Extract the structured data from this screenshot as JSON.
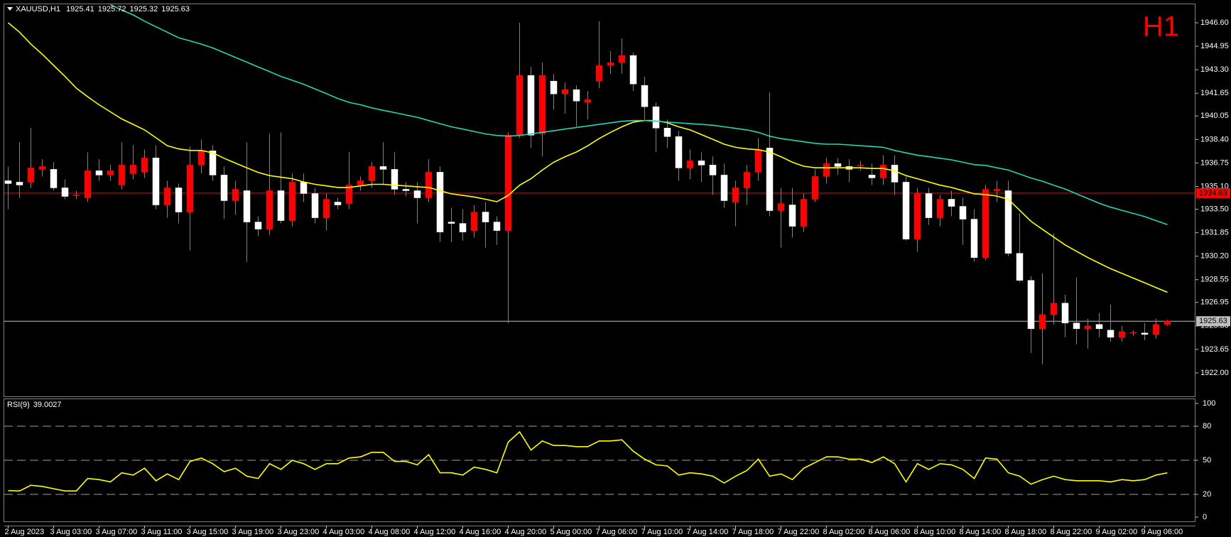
{
  "chart_data": {
    "type": "candlestick",
    "symbol": "XAUUSD,H1",
    "timeframe_label": "H1",
    "categories": [
      "2 Aug 2023",
      null,
      null,
      null,
      "3 Aug 03:00",
      null,
      null,
      null,
      "3 Aug 07:00",
      null,
      null,
      null,
      "3 Aug 11:00",
      null,
      null,
      null,
      "3 Aug 15:00",
      null,
      null,
      null,
      "3 Aug 19:00",
      null,
      null,
      null,
      "3 Aug 23:00",
      null,
      null,
      null,
      "4 Aug 03:00",
      null,
      null,
      null,
      "4 Aug 08:00",
      null,
      null,
      null,
      "4 Aug 12:00",
      null,
      null,
      null,
      "4 Aug 16:00",
      null,
      null,
      null,
      "4 Aug 20:00",
      null,
      null,
      null,
      "5 Aug 00:00",
      null,
      null,
      null,
      "7 Aug 06:00",
      null,
      null,
      null,
      "7 Aug 10:00",
      null,
      null,
      null,
      "7 Aug 14:00",
      null,
      null,
      null,
      "7 Aug 18:00",
      null,
      null,
      null,
      "7 Aug 22:00",
      null,
      null,
      null,
      "8 Aug 02:00",
      null,
      null,
      null,
      "8 Aug 06:00",
      null,
      null,
      null,
      "8 Aug 10:00",
      null,
      null,
      null,
      "8 Aug 14:00",
      null,
      null,
      null,
      "8 Aug 18:00",
      null,
      null,
      null,
      "8 Aug 22:00",
      null,
      null,
      null,
      "9 Aug 02:00",
      null,
      null,
      null,
      "9 Aug 06:00",
      null,
      null
    ],
    "open": [
      1935.5,
      1935.4,
      1935.4,
      1936.3,
      1936.3,
      1935.0,
      1934.45,
      1934.3,
      1936.2,
      1935.9,
      1935.2,
      1936.0,
      1936.1,
      1937.1,
      1933.8,
      1935.0,
      1933.3,
      1936.6,
      1937.6,
      1935.9,
      1934.1,
      1934.8,
      1932.6,
      1932.1,
      1934.8,
      1932.7,
      1935.4,
      1934.6,
      1932.9,
      1934.0,
      1933.9,
      1935.2,
      1935.5,
      1936.5,
      1936.3,
      1934.9,
      1934.8,
      1934.3,
      1936.1,
      1932.6,
      1932.5,
      1932.0,
      1933.3,
      1932.6,
      1932.0,
      1938.7,
      1942.9,
      1938.8,
      1942.5,
      1941.6,
      1941.9,
      1941.0,
      1942.5,
      1943.6,
      1943.8,
      1944.3,
      1942.2,
      1940.7,
      1939.2,
      1938.6,
      1936.4,
      1936.9,
      1936.6,
      1935.9,
      1934.0,
      1935.0,
      1936.1,
      1937.8,
      1933.4,
      1933.8,
      1932.3,
      1934.2,
      1935.8,
      1936.7,
      1936.5,
      1936.55,
      1935.9,
      1935.7,
      1936.6,
      1935.4,
      1931.4,
      1934.6,
      1932.9,
      1934.2,
      1933.7,
      1932.8,
      1930.1,
      1934.8,
      1934.8,
      1930.4,
      1928.5,
      1925.1,
      1926.1,
      1926.9,
      1925.5,
      1925.1,
      1925.4,
      1925.0,
      1924.5,
      1924.8,
      1924.8,
      1924.7,
      1925.41
    ],
    "high": [
      1936.5,
      1938.2,
      1939.2,
      1937.0,
      1936.8,
      1935.6,
      1934.8,
      1937.5,
      1937.0,
      1936.6,
      1938.2,
      1938.0,
      1937.7,
      1938.0,
      1935.5,
      1935.3,
      1937.9,
      1938.4,
      1938.0,
      1936.5,
      1935.5,
      1938.2,
      1933.0,
      1938.8,
      1938.9,
      1936.0,
      1936.0,
      1935.0,
      1934.6,
      1934.3,
      1937.5,
      1935.8,
      1936.8,
      1938.2,
      1937.5,
      1935.4,
      1935.4,
      1937.0,
      1936.5,
      1933.6,
      1933.5,
      1933.8,
      1934.0,
      1933.0,
      1938.9,
      1946.6,
      1943.5,
      1943.8,
      1943.0,
      1942.4,
      1942.2,
      1941.8,
      1946.7,
      1944.6,
      1945.5,
      1944.5,
      1942.8,
      1941.0,
      1939.8,
      1939.0,
      1937.7,
      1937.5,
      1937.2,
      1936.7,
      1935.5,
      1936.6,
      1938.5,
      1941.7,
      1935.0,
      1935.0,
      1934.6,
      1936.3,
      1937.1,
      1937.1,
      1937.0,
      1936.9,
      1936.7,
      1937.3,
      1937.3,
      1935.8,
      1935.0,
      1935.0,
      1934.5,
      1934.8,
      1934.3,
      1933.5,
      1935.2,
      1935.5,
      1935.5,
      1933.2,
      1928.8,
      1929.0,
      1931.8,
      1927.5,
      1928.7,
      1925.8,
      1926.2,
      1926.8,
      1925.3,
      1925.0,
      1925.5,
      1925.8,
      1925.72
    ],
    "low": [
      1933.5,
      1934.3,
      1935.0,
      1935.8,
      1934.8,
      1934.2,
      1934.2,
      1934.0,
      1935.5,
      1935.5,
      1934.9,
      1935.6,
      1935.7,
      1933.5,
      1932.9,
      1932.5,
      1930.6,
      1936.0,
      1935.5,
      1932.8,
      1933.1,
      1929.8,
      1931.6,
      1931.7,
      1932.5,
      1932.3,
      1934.0,
      1932.5,
      1932.0,
      1933.5,
      1933.5,
      1934.8,
      1935.0,
      1935.2,
      1934.5,
      1934.4,
      1932.5,
      1934.0,
      1931.2,
      1931.2,
      1931.3,
      1931.5,
      1930.8,
      1931.0,
      1925.5,
      1938.5,
      1937.8,
      1937.2,
      1940.5,
      1940.2,
      1939.3,
      1939.8,
      1942.0,
      1943.0,
      1943.0,
      1941.8,
      1939.8,
      1937.5,
      1937.8,
      1935.5,
      1935.6,
      1935.4,
      1934.5,
      1933.6,
      1932.3,
      1933.8,
      1935.5,
      1933.0,
      1930.8,
      1931.5,
      1931.9,
      1934.0,
      1935.3,
      1935.9,
      1935.4,
      1936.2,
      1935.2,
      1935.2,
      1934.5,
      1931.3,
      1930.5,
      1932.4,
      1932.3,
      1933.0,
      1931.0,
      1929.8,
      1929.9,
      1934.0,
      1930.2,
      1928.4,
      1923.4,
      1922.6,
      1925.4,
      1924.5,
      1924.0,
      1923.7,
      1924.5,
      1924.2,
      1924.2,
      1924.6,
      1924.3,
      1924.4,
      1925.32
    ],
    "close": [
      1935.3,
      1935.2,
      1936.4,
      1936.5,
      1935.0,
      1934.4,
      1934.5,
      1936.2,
      1935.9,
      1936.2,
      1936.6,
      1936.6,
      1937.1,
      1933.8,
      1935.0,
      1933.3,
      1936.6,
      1937.6,
      1935.9,
      1934.1,
      1934.9,
      1932.6,
      1932.1,
      1934.8,
      1932.7,
      1935.4,
      1934.6,
      1932.9,
      1934.2,
      1933.8,
      1935.2,
      1935.5,
      1936.5,
      1936.3,
      1934.9,
      1934.8,
      1934.3,
      1936.1,
      1931.9,
      1932.5,
      1931.9,
      1933.3,
      1932.6,
      1932.0,
      1938.7,
      1942.9,
      1938.7,
      1942.9,
      1941.6,
      1941.9,
      1941.1,
      1941.2,
      1943.6,
      1943.8,
      1944.3,
      1942.3,
      1940.7,
      1939.2,
      1938.6,
      1936.4,
      1936.9,
      1936.6,
      1935.9,
      1934.1,
      1935.0,
      1936.1,
      1937.7,
      1933.4,
      1933.9,
      1932.3,
      1934.2,
      1935.8,
      1936.7,
      1936.5,
      1936.3,
      1936.6,
      1935.7,
      1936.6,
      1935.4,
      1931.4,
      1934.6,
      1932.9,
      1934.2,
      1933.7,
      1932.8,
      1930.1,
      1934.9,
      1934.9,
      1930.4,
      1928.5,
      1925.1,
      1926.1,
      1926.9,
      1925.5,
      1925.1,
      1925.3,
      1925.1,
      1924.5,
      1924.9,
      1924.85,
      1924.7,
      1925.4,
      1925.63
    ],
    "up_color": "#ff0000",
    "down_color": "#ffffff",
    "wick_color": "#00e000",
    "ylim": [
      1920.35,
      1947.9
    ],
    "yticks": [
      {
        "value": 1946.6,
        "label": "1946.60"
      },
      1944.95,
      {
        "value": 1943.3,
        "label": "1943.30"
      },
      1941.65,
      1940.05,
      {
        "value": 1938.4,
        "label": "1938.40"
      },
      1936.75,
      {
        "value": 1935.1,
        "label": "1935.10"
      },
      {
        "value": 1933.5,
        "label": "1933.50"
      },
      1931.85,
      {
        "value": 1930.2,
        "label": "1930.20"
      },
      1928.55,
      1926.95,
      {
        "value": 1925.3,
        "label": "1925.30"
      },
      1923.65,
      {
        "value": 1922,
        "label": "1922.00"
      }
    ],
    "lines": [
      {
        "color": "#ffff00",
        "values": [
          1946.6,
          1945.94,
          1945.1,
          1944.39,
          1943.61,
          1942.83,
          1942.0,
          1941.4,
          1940.84,
          1940.34,
          1939.84,
          1939.46,
          1939.07,
          1938.52,
          1937.96,
          1937.74,
          1937.63,
          1937.63,
          1937.46,
          1937.08,
          1936.74,
          1936.41,
          1936.08,
          1935.86,
          1935.75,
          1935.64,
          1935.42,
          1935.25,
          1935.14,
          1935.03,
          1935.03,
          1935.14,
          1935.25,
          1935.25,
          1935.19,
          1935.14,
          1935.08,
          1935.03,
          1934.8,
          1934.58,
          1934.47,
          1934.36,
          1934.2,
          1934.03,
          1934.47,
          1935.19,
          1935.64,
          1936.25,
          1936.8,
          1937.19,
          1937.52,
          1937.96,
          1938.46,
          1938.9,
          1939.29,
          1939.62,
          1939.73,
          1939.73,
          1939.57,
          1939.29,
          1939.07,
          1938.74,
          1938.41,
          1938.07,
          1937.85,
          1937.74,
          1937.68,
          1937.52,
          1937.19,
          1936.8,
          1936.52,
          1936.41,
          1936.41,
          1936.41,
          1936.41,
          1936.41,
          1936.36,
          1936.36,
          1936.19,
          1935.86,
          1935.64,
          1935.42,
          1935.19,
          1935.03,
          1934.81,
          1934.58,
          1934.53,
          1934.42,
          1934.2,
          1933.42,
          1932.65,
          1932.09,
          1931.54,
          1930.99,
          1930.54,
          1930.1,
          1929.71,
          1929.32,
          1928.99,
          1928.66,
          1928.33,
          1927.99,
          1927.66
        ]
      },
      {
        "color": "#20d8b8",
        "values": [
          null,
          null,
          null,
          null,
          null,
          null,
          null,
          null,
          null,
          1947.87,
          1947.49,
          1947.15,
          1946.71,
          1946.32,
          1945.94,
          1945.55,
          1945.33,
          1945.1,
          1944.83,
          1944.5,
          1944.16,
          1943.83,
          1943.5,
          1943.17,
          1942.83,
          1942.56,
          1942.28,
          1941.95,
          1941.62,
          1941.28,
          1941.01,
          1940.84,
          1940.62,
          1940.45,
          1940.29,
          1940.12,
          1939.96,
          1939.73,
          1939.51,
          1939.29,
          1939.13,
          1938.96,
          1938.79,
          1938.68,
          1938.63,
          1938.68,
          1938.79,
          1938.9,
          1939.01,
          1939.13,
          1939.24,
          1939.35,
          1939.46,
          1939.57,
          1939.68,
          1939.73,
          1939.73,
          1939.68,
          1939.62,
          1939.57,
          1939.51,
          1939.46,
          1939.4,
          1939.29,
          1939.18,
          1939.07,
          1938.9,
          1938.63,
          1938.46,
          1938.35,
          1938.24,
          1938.13,
          1938.07,
          1938.07,
          1938.02,
          1937.96,
          1937.91,
          1937.85,
          1937.63,
          1937.46,
          1937.3,
          1937.19,
          1937.08,
          1936.97,
          1936.8,
          1936.63,
          1936.58,
          1936.41,
          1936.25,
          1935.97,
          1935.69,
          1935.47,
          1935.19,
          1934.92,
          1934.58,
          1934.25,
          1933.92,
          1933.64,
          1933.42,
          1933.2,
          1932.98,
          1932.7,
          1932.42
        ]
      }
    ],
    "hlines": [
      {
        "value": 1934.63,
        "color": "#ff0000"
      },
      {
        "value": 1925.63,
        "color": "#c0c0c0"
      }
    ],
    "indicator": {
      "type": "line",
      "title": "RSI(9)",
      "color": "#ffff00",
      "values": [
        23.3,
        23,
        28,
        27,
        25,
        23,
        23,
        34,
        33,
        31,
        39,
        37,
        43,
        32,
        38,
        33,
        49,
        52,
        47,
        40,
        43,
        36,
        34,
        47,
        42,
        50,
        47,
        42,
        47,
        47,
        52,
        53,
        57,
        57,
        49,
        49,
        46,
        55,
        39,
        39,
        37,
        44,
        42,
        39,
        66,
        75,
        59,
        67,
        63,
        63,
        62,
        62,
        67,
        67,
        68,
        58,
        51,
        46,
        45,
        37,
        39,
        38,
        36,
        30,
        36,
        41,
        51,
        36,
        38,
        33,
        43,
        48,
        53,
        53,
        51,
        51,
        48,
        53,
        47,
        31,
        47,
        42,
        47,
        46,
        42,
        34,
        52,
        51,
        39,
        36,
        29,
        33,
        36,
        33,
        32,
        32,
        32,
        31,
        33,
        32,
        33,
        37,
        39.0027
      ],
      "ylim": [
        0,
        100
      ],
      "yticks": [
        0,
        20,
        50,
        80,
        100
      ]
    }
  }
}
